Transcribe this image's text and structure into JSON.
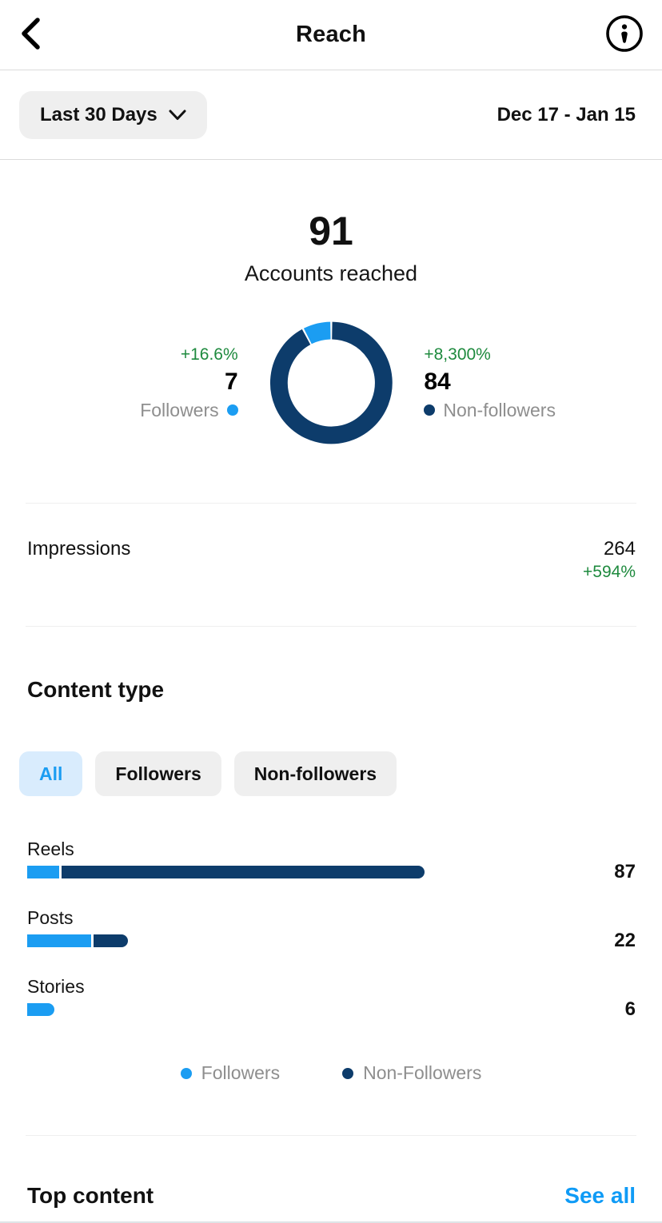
{
  "header": {
    "title": "Reach"
  },
  "filters_bar": {
    "period_label": "Last 30 Days",
    "date_range": "Dec 17 - Jan 15"
  },
  "overview": {
    "value": "91",
    "label": "Accounts reached",
    "followers": {
      "delta": "+16.6%",
      "value": "7",
      "label": "Followers"
    },
    "non_followers": {
      "delta": "+8,300%",
      "value": "84",
      "label": "Non-followers"
    }
  },
  "impressions": {
    "label": "Impressions",
    "value": "264",
    "delta": "+594%"
  },
  "content_type": {
    "heading": "Content type",
    "tabs": [
      {
        "label": "All",
        "active": true
      },
      {
        "label": "Followers",
        "active": false
      },
      {
        "label": "Non-followers",
        "active": false
      }
    ],
    "legend": [
      {
        "label": "Followers",
        "color": "#1b9df2"
      },
      {
        "label": "Non-Followers",
        "color": "#0d3c6b"
      }
    ]
  },
  "top_content": {
    "heading": "Top content",
    "action": "See all"
  },
  "colors": {
    "accent_blue": "#1b9df2",
    "navy": "#0d3c6b",
    "green": "#1e8a3e",
    "gray_text": "#8e8e8e",
    "pill_bg": "#efefef",
    "active_pill_bg": "#d9ecfd",
    "link_blue": "#0f9bf6",
    "divider": "#dbdbdb",
    "divider_light": "#efefef"
  },
  "chart_data": [
    {
      "type": "pie",
      "subtype": "donut",
      "title": "Accounts reached",
      "total": 91,
      "slices": [
        {
          "label": "Non-followers",
          "value": 84,
          "delta": "+8,300%",
          "color": "#0d3c6b"
        },
        {
          "label": "Followers",
          "value": 7,
          "delta": "+16.6%",
          "color": "#1b9df2"
        }
      ],
      "legend_position": "sides"
    },
    {
      "type": "bar",
      "orientation": "horizontal",
      "stacked": true,
      "categories": [
        "Reels",
        "Posts",
        "Stories"
      ],
      "series": [
        {
          "name": "Followers",
          "color": "#1b9df2",
          "values": [
            7,
            14,
            6
          ]
        },
        {
          "name": "Non-Followers",
          "color": "#0d3c6b",
          "values": [
            80,
            8,
            0
          ]
        }
      ],
      "totals": [
        87,
        22,
        6
      ],
      "xmax": 87,
      "grid": false,
      "legend_position": "bottom"
    }
  ]
}
